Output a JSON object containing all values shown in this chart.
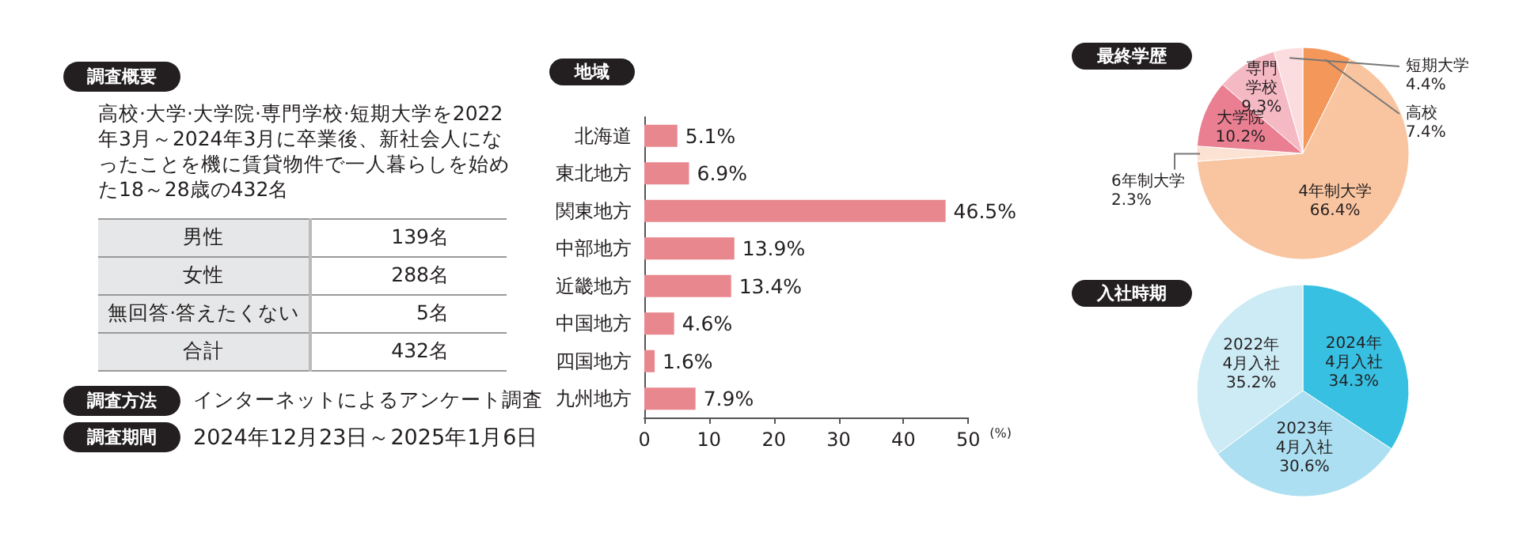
{
  "chart_data": [
    {
      "type": "other",
      "title": "調査概要",
      "annotations": [
        "高校·大学·大学院·専門学校·短期大学を2022年3月～2024年3月に卒業後、新社会人になったことを機に賃貸物件で一人暮らしを始めた18～28歳の432名",
        "男性",
        "139名",
        "女性",
        "288名",
        "無回答·答えたくない",
        "5名",
        "合計",
        "432名",
        "調査方法",
        "インターネットによるアンケート調査",
        "調査期間",
        "2024年12月23日～2025年1月6日"
      ]
    },
    {
      "type": "bar",
      "title": "地域",
      "orientation": "horizontal",
      "categories": [
        "北海道",
        "東北地方",
        "関東地方",
        "中部地方",
        "近畿地方",
        "中国地方",
        "四国地方",
        "九州地方"
      ],
      "values": [
        5.1,
        6.9,
        46.5,
        13.9,
        13.4,
        4.6,
        1.6,
        7.9
      ],
      "value_labels": [
        "5.1%",
        "6.9%",
        "46.5%",
        "13.9%",
        "13.4%",
        "4.6%",
        "1.6%",
        "7.9%"
      ],
      "color": "#e8878e",
      "xlim": [
        0,
        50
      ],
      "xticks": [
        0,
        10,
        20,
        30,
        40,
        50
      ],
      "xlabel": "(%)"
    },
    {
      "type": "pie",
      "title": "最終学歴",
      "categories": [
        "高校",
        "4年制大学",
        "6年制大学",
        "大学院",
        "専門学校",
        "短期大学"
      ],
      "values": [
        7.4,
        66.4,
        2.3,
        10.2,
        9.3,
        4.4
      ],
      "colors": [
        "#f4975a",
        "#f9c5a0",
        "#fbe2d2",
        "#ea7f92",
        "#f5b9c3",
        "#fbdde0"
      ],
      "value_labels": [
        "7.4%",
        "66.4%",
        "2.3%",
        "10.2%",
        "9.3%",
        "4.4%"
      ]
    },
    {
      "type": "pie",
      "title": "入社時期",
      "categories": [
        "2024年4月入社",
        "2023年4月入社",
        "2022年4月入社"
      ],
      "values": [
        34.3,
        30.6,
        35.2
      ],
      "colors": [
        "#37c0e2",
        "#abdff1",
        "#cdebf5"
      ],
      "value_labels": [
        "34.3%",
        "30.6%",
        "35.2%"
      ]
    }
  ]
}
